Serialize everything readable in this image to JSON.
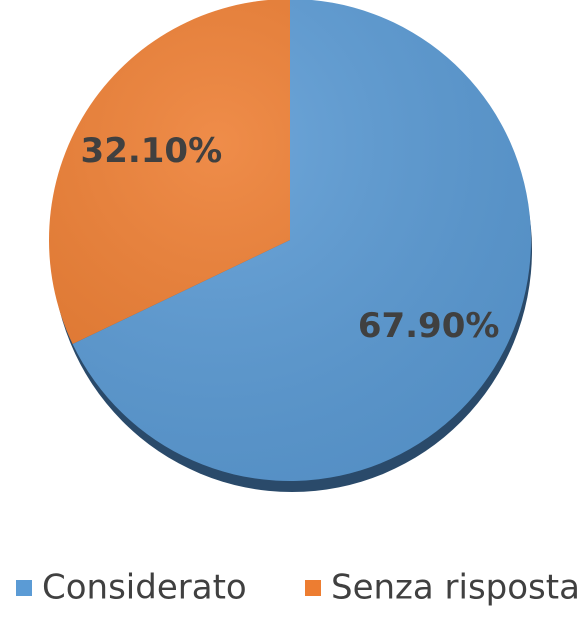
{
  "chart_data": {
    "type": "pie",
    "categories": [
      "Considerato",
      "Senza risposta"
    ],
    "values": [
      67.9,
      32.1
    ],
    "value_labels": [
      "67.90%",
      "32.10%"
    ],
    "colors": [
      "#5b9bd5",
      "#ed7d31"
    ],
    "legend": "bottom"
  }
}
